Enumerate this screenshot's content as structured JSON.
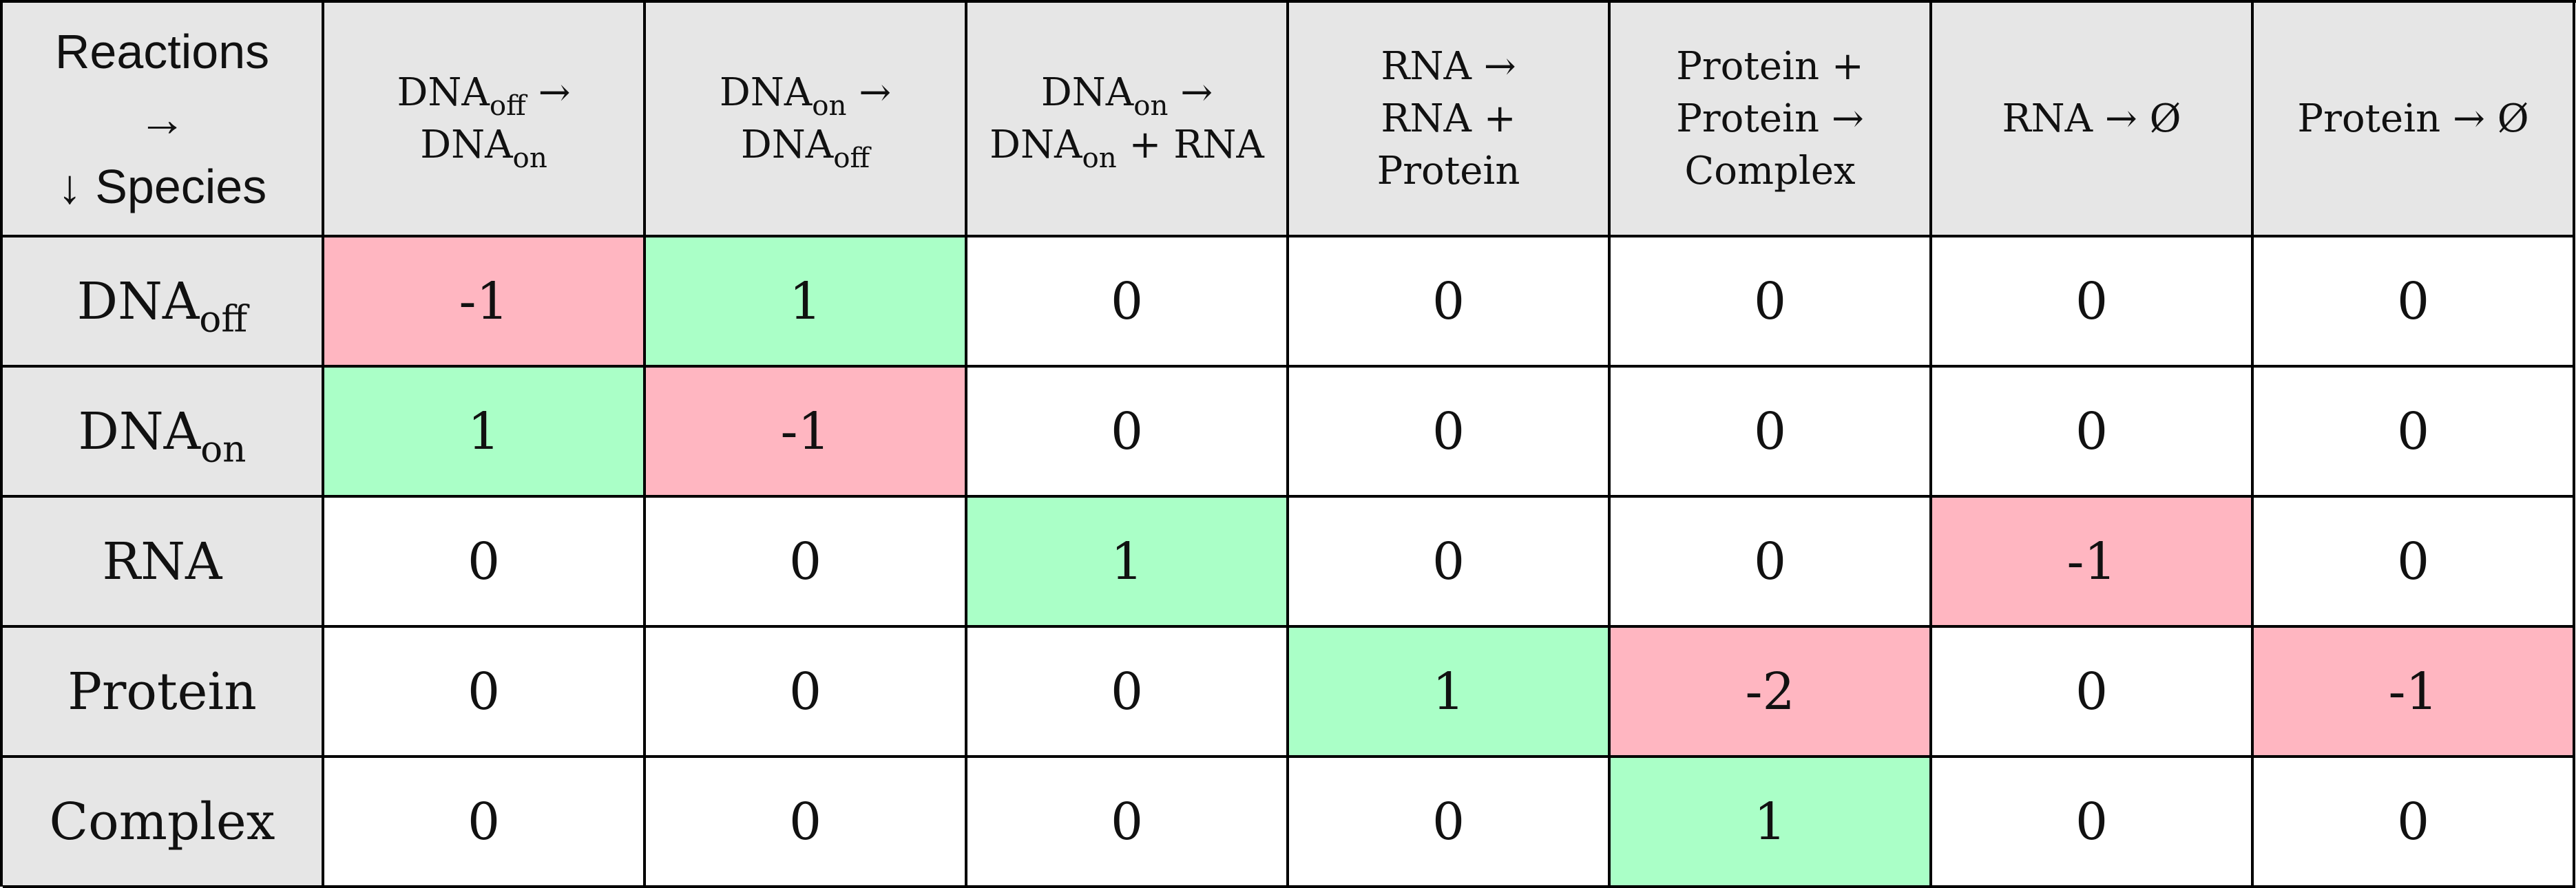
{
  "corner": {
    "reactions_label": "Reactions",
    "right_arrow": "→",
    "species_label": "↓ Species"
  },
  "reactions": [
    {
      "lines": [
        [
          {
            "t": "DNA"
          },
          {
            "s": "off"
          },
          {
            "t": " →"
          }
        ],
        [
          {
            "t": "DNA"
          },
          {
            "s": "on"
          }
        ]
      ]
    },
    {
      "lines": [
        [
          {
            "t": "DNA"
          },
          {
            "s": "on"
          },
          {
            "t": " →"
          }
        ],
        [
          {
            "t": "DNA"
          },
          {
            "s": "off"
          }
        ]
      ]
    },
    {
      "lines": [
        [
          {
            "t": "DNA"
          },
          {
            "s": "on"
          },
          {
            "t": " →"
          }
        ],
        [
          {
            "t": "DNA"
          },
          {
            "s": "on"
          },
          {
            "t": " + RNA"
          }
        ]
      ]
    },
    {
      "lines": [
        [
          {
            "t": "RNA →"
          }
        ],
        [
          {
            "t": "RNA +"
          }
        ],
        [
          {
            "t": "Protein"
          }
        ]
      ]
    },
    {
      "lines": [
        [
          {
            "t": "Protein +"
          }
        ],
        [
          {
            "t": "Protein →"
          }
        ],
        [
          {
            "t": "Complex"
          }
        ]
      ]
    },
    {
      "lines": [
        [
          {
            "t": "RNA → Ø"
          }
        ]
      ]
    },
    {
      "lines": [
        [
          {
            "t": "Protein → Ø"
          }
        ]
      ]
    }
  ],
  "species": [
    {
      "parts": [
        {
          "t": "DNA"
        },
        {
          "s": "off"
        }
      ],
      "values": [
        "-1",
        "1",
        "0",
        "0",
        "0",
        "0",
        "0"
      ]
    },
    {
      "parts": [
        {
          "t": "DNA"
        },
        {
          "s": "on"
        }
      ],
      "values": [
        "1",
        "-1",
        "0",
        "0",
        "0",
        "0",
        "0"
      ]
    },
    {
      "parts": [
        {
          "t": "RNA"
        }
      ],
      "values": [
        "0",
        "0",
        "1",
        "0",
        "0",
        "-1",
        "0"
      ]
    },
    {
      "parts": [
        {
          "t": "Protein"
        }
      ],
      "values": [
        "0",
        "0",
        "0",
        "1",
        "-2",
        "0",
        "-1"
      ]
    },
    {
      "parts": [
        {
          "t": "Complex"
        }
      ],
      "values": [
        "0",
        "0",
        "0",
        "0",
        "1",
        "0",
        "0"
      ]
    }
  ],
  "colors": {
    "positive": "#aaffc7",
    "negative": "#ffb6c1",
    "header": "#e6e6e6",
    "zero": "#ffffff"
  }
}
